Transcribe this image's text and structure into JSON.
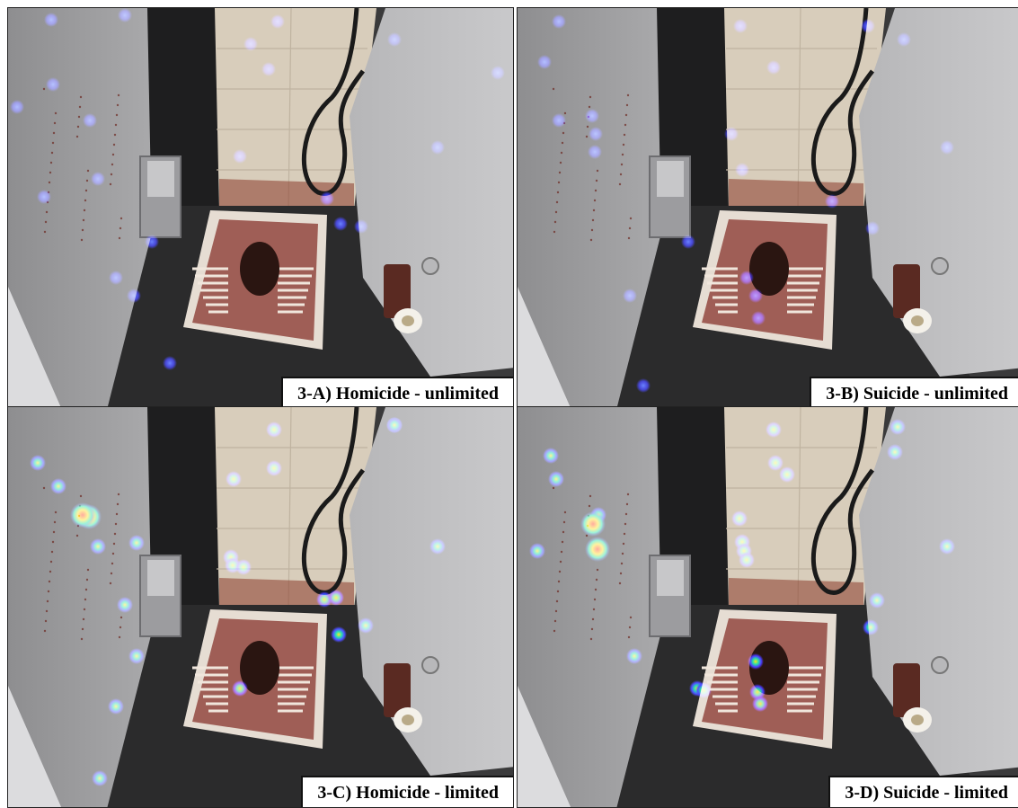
{
  "figure": {
    "panels": [
      {
        "id": "A",
        "label": "3-A) Homicide - unlimited",
        "condition": "unlimited",
        "fixation_style": "diffuse-blue"
      },
      {
        "id": "B",
        "label": "3-B) Suicide - unlimited",
        "condition": "unlimited",
        "fixation_style": "diffuse-blue"
      },
      {
        "id": "C",
        "label": "3-C) Homicide - limited",
        "condition": "limited",
        "fixation_style": "focal-rainbow"
      },
      {
        "id": "D",
        "label": "3-D) Suicide - limited",
        "condition": "limited",
        "fixation_style": "focal-rainbow"
      }
    ],
    "scene": {
      "description_icon": "blood-stained-squat-toilet-cubicle-photo",
      "colors": {
        "left_wall": "#a9a9ab",
        "right_wall": "#c9c9cb",
        "back_tile": "#d8cdbb",
        "floor": "#2b2b2c",
        "blood": "#7a1a12",
        "heatmap_low": "#2a2aff",
        "heatmap_mid": "#00e0a0",
        "heatmap_high": "#ff2a00"
      }
    }
  }
}
